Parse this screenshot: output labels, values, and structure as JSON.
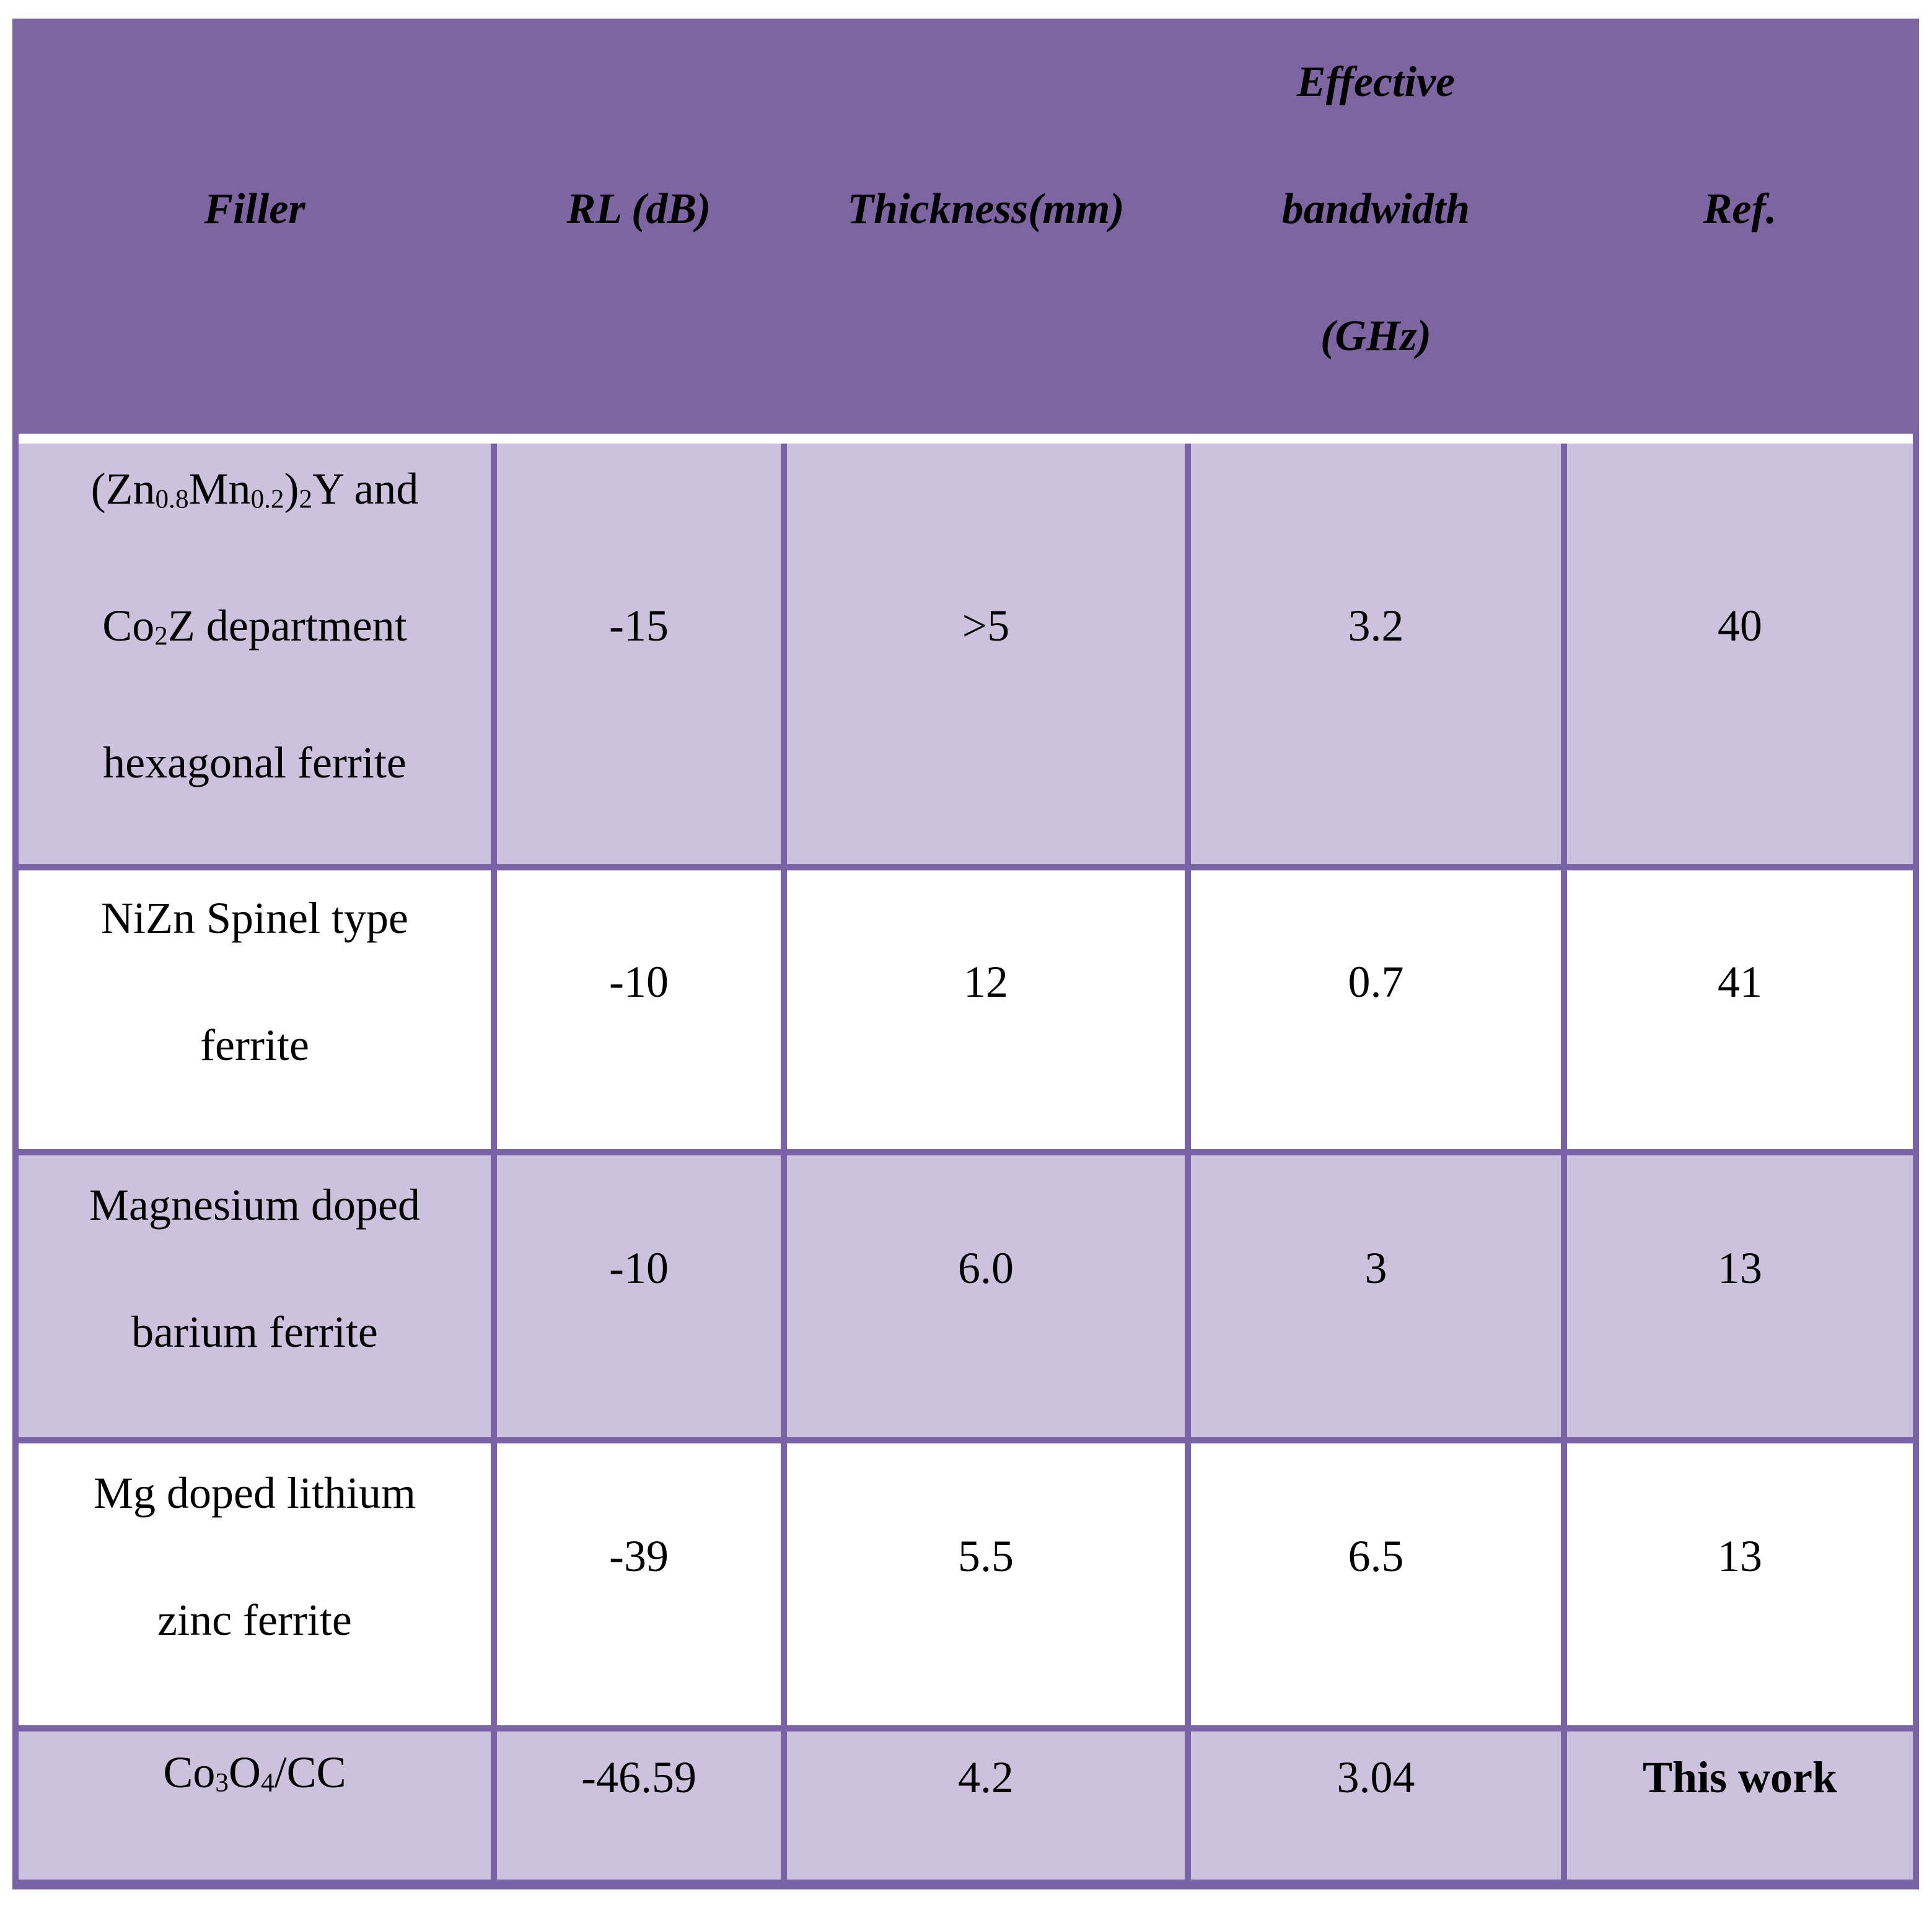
{
  "table": {
    "title_hint": "Comparison of microwave absorption performance of ferrite fillers",
    "colors": {
      "header_bg": "#7C65A0",
      "grid_border": "#7863A6",
      "row_shaded_bg": "#CDC2DE",
      "row_plain_bg": "#FFFFFF",
      "text": "#000000",
      "header_separator": "#FFFFFF"
    },
    "header": {
      "columns": [
        {
          "id": "filler",
          "label_lines": [
            [
              {
                "t": "Filler"
              }
            ]
          ]
        },
        {
          "id": "rl_db",
          "label_lines": [
            [
              {
                "t": "RL (dB)"
              }
            ]
          ]
        },
        {
          "id": "thickness",
          "label_lines": [
            [
              {
                "t": "Thickness(mm)"
              }
            ]
          ]
        },
        {
          "id": "bandwidth",
          "label_lines": [
            [
              {
                "t": "Effective"
              }
            ],
            [
              {
                "t": "bandwidth"
              }
            ],
            [
              {
                "t": "(GHz)"
              }
            ]
          ]
        },
        {
          "id": "ref",
          "label_lines": [
            [
              {
                "t": "Ref."
              }
            ]
          ]
        }
      ]
    },
    "rows": [
      {
        "filler_lines": [
          [
            {
              "t": "(Zn"
            },
            {
              "t": "0.8",
              "sub": true
            },
            {
              "t": "Mn"
            },
            {
              "t": "0.2",
              "sub": true
            },
            {
              "t": ")"
            },
            {
              "t": "2",
              "sub": true
            },
            {
              "t": "Y and"
            }
          ],
          [
            {
              "t": "Co"
            },
            {
              "t": "2",
              "sub": true
            },
            {
              "t": "Z department"
            }
          ],
          [
            {
              "t": "hexagonal ferrite"
            }
          ]
        ],
        "rl_db": "-15",
        "thickness_mm": ">5",
        "bandwidth_ghz": "3.2",
        "ref": "40",
        "ref_bold": false,
        "shaded": true
      },
      {
        "filler_lines": [
          [
            {
              "t": "NiZn Spinel type"
            }
          ],
          [
            {
              "t": "ferrite"
            }
          ]
        ],
        "rl_db": "-10",
        "thickness_mm": "12",
        "bandwidth_ghz": "0.7",
        "ref": "41",
        "ref_bold": false,
        "shaded": false
      },
      {
        "filler_lines": [
          [
            {
              "t": "Magnesium doped"
            }
          ],
          [
            {
              "t": "barium ferrite"
            }
          ]
        ],
        "rl_db": "-10",
        "thickness_mm": "6.0",
        "bandwidth_ghz": "3",
        "ref": "13",
        "ref_bold": false,
        "shaded": true
      },
      {
        "filler_lines": [
          [
            {
              "t": "Mg doped lithium"
            }
          ],
          [
            {
              "t": "zinc ferrite"
            }
          ]
        ],
        "rl_db": "-39",
        "thickness_mm": "5.5",
        "bandwidth_ghz": "6.5",
        "ref": "13",
        "ref_bold": false,
        "shaded": false
      },
      {
        "filler_lines": [
          [
            {
              "t": "Co"
            },
            {
              "t": "3",
              "sub": true
            },
            {
              "t": "O"
            },
            {
              "t": "4",
              "sub": true
            },
            {
              "t": "/CC"
            }
          ]
        ],
        "rl_db": "-46.59",
        "thickness_mm": "4.2",
        "bandwidth_ghz": "3.04",
        "ref": "This work",
        "ref_bold": true,
        "shaded": true
      }
    ]
  }
}
